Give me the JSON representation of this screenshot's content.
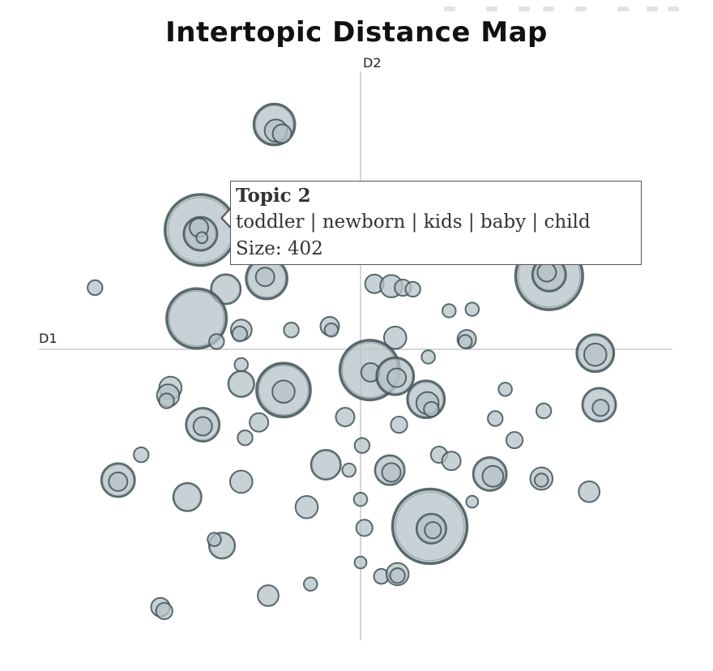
{
  "chart_data": {
    "type": "scatter",
    "title": "Intertopic Distance Map",
    "axes": {
      "x_label": "D1",
      "y_label": "D2"
    },
    "colors": {
      "bubble_fill": "#b5c2c8",
      "bubble_stroke": "#3f5353",
      "axis_line": "#d6d6d6"
    },
    "tooltip": {
      "title": "Topic 2",
      "words": "toddler | newborn | kids | baby | child",
      "size": "Size: 402"
    },
    "points": [
      {
        "x": -1.12,
        "y": 2.92,
        "s": 0.55
      },
      {
        "x": -1.1,
        "y": 2.84,
        "s": 0.3
      },
      {
        "x": -1.02,
        "y": 2.8,
        "s": 0.25
      },
      {
        "x": -2.08,
        "y": 1.55,
        "s": 0.95
      },
      {
        "x": -2.08,
        "y": 1.5,
        "s": 0.45
      },
      {
        "x": -2.1,
        "y": 1.58,
        "s": 0.25
      },
      {
        "x": -2.06,
        "y": 1.45,
        "s": 0.15
      },
      {
        "x": -3.45,
        "y": 0.8,
        "s": 0.2
      },
      {
        "x": -1.75,
        "y": 0.78,
        "s": 0.4
      },
      {
        "x": -1.22,
        "y": 0.92,
        "s": 0.55
      },
      {
        "x": -1.24,
        "y": 0.94,
        "s": 0.25
      },
      {
        "x": -2.13,
        "y": 0.4,
        "s": 0.8
      },
      {
        "x": -1.55,
        "y": 0.25,
        "s": 0.28
      },
      {
        "x": -1.57,
        "y": 0.2,
        "s": 0.2
      },
      {
        "x": -1.87,
        "y": 0.1,
        "s": 0.2
      },
      {
        "x": -0.9,
        "y": 0.25,
        "s": 0.2
      },
      {
        "x": -0.4,
        "y": 0.3,
        "s": 0.25
      },
      {
        "x": -0.38,
        "y": 0.25,
        "s": 0.18
      },
      {
        "x": 0.18,
        "y": 0.85,
        "s": 0.25
      },
      {
        "x": 0.4,
        "y": 0.82,
        "s": 0.3
      },
      {
        "x": 0.55,
        "y": 0.8,
        "s": 0.22
      },
      {
        "x": 0.68,
        "y": 0.78,
        "s": 0.2
      },
      {
        "x": 2.45,
        "y": 0.95,
        "s": 0.9
      },
      {
        "x": 2.45,
        "y": 0.97,
        "s": 0.45
      },
      {
        "x": 2.42,
        "y": 1.0,
        "s": 0.25
      },
      {
        "x": 1.15,
        "y": 0.5,
        "s": 0.18
      },
      {
        "x": 1.45,
        "y": 0.52,
        "s": 0.18
      },
      {
        "x": 0.45,
        "y": 0.15,
        "s": 0.3
      },
      {
        "x": 1.38,
        "y": 0.13,
        "s": 0.25
      },
      {
        "x": 1.36,
        "y": 0.1,
        "s": 0.18
      },
      {
        "x": 0.88,
        "y": -0.1,
        "s": 0.18
      },
      {
        "x": 3.05,
        "y": -0.05,
        "s": 0.5
      },
      {
        "x": 3.05,
        "y": -0.07,
        "s": 0.3
      },
      {
        "x": 0.12,
        "y": -0.27,
        "s": 0.8
      },
      {
        "x": 0.13,
        "y": -0.3,
        "s": 0.25
      },
      {
        "x": 0.45,
        "y": -0.35,
        "s": 0.5
      },
      {
        "x": 0.47,
        "y": -0.37,
        "s": 0.25
      },
      {
        "x": -1.55,
        "y": -0.2,
        "s": 0.18
      },
      {
        "x": -1.55,
        "y": -0.45,
        "s": 0.35
      },
      {
        "x": -2.47,
        "y": -0.5,
        "s": 0.3
      },
      {
        "x": -2.5,
        "y": -0.6,
        "s": 0.3
      },
      {
        "x": -2.52,
        "y": -0.67,
        "s": 0.2
      },
      {
        "x": -1.0,
        "y": -0.53,
        "s": 0.72
      },
      {
        "x": -1.0,
        "y": -0.55,
        "s": 0.3
      },
      {
        "x": 0.85,
        "y": -0.65,
        "s": 0.5
      },
      {
        "x": 0.87,
        "y": -0.7,
        "s": 0.3
      },
      {
        "x": 0.92,
        "y": -0.78,
        "s": 0.2
      },
      {
        "x": 1.88,
        "y": -0.52,
        "s": 0.18
      },
      {
        "x": 3.1,
        "y": -0.72,
        "s": 0.45
      },
      {
        "x": 3.12,
        "y": -0.76,
        "s": 0.22
      },
      {
        "x": -1.32,
        "y": -0.95,
        "s": 0.25
      },
      {
        "x": -1.5,
        "y": -1.15,
        "s": 0.2
      },
      {
        "x": -2.05,
        "y": -0.98,
        "s": 0.45
      },
      {
        "x": -2.05,
        "y": -1.0,
        "s": 0.25
      },
      {
        "x": -0.2,
        "y": -0.88,
        "s": 0.25
      },
      {
        "x": 0.5,
        "y": -0.98,
        "s": 0.22
      },
      {
        "x": 1.75,
        "y": -0.9,
        "s": 0.2
      },
      {
        "x": 2.38,
        "y": -0.8,
        "s": 0.2
      },
      {
        "x": 2.0,
        "y": -1.18,
        "s": 0.22
      },
      {
        "x": -2.85,
        "y": -1.37,
        "s": 0.2
      },
      {
        "x": -3.15,
        "y": -1.7,
        "s": 0.45
      },
      {
        "x": -3.15,
        "y": -1.72,
        "s": 0.25
      },
      {
        "x": -2.25,
        "y": -1.92,
        "s": 0.38
      },
      {
        "x": -1.55,
        "y": -1.72,
        "s": 0.3
      },
      {
        "x": -0.45,
        "y": -1.5,
        "s": 0.4
      },
      {
        "x": 0.02,
        "y": -1.25,
        "s": 0.2
      },
      {
        "x": -0.15,
        "y": -1.57,
        "s": 0.18
      },
      {
        "x": 0.38,
        "y": -1.57,
        "s": 0.4
      },
      {
        "x": 0.4,
        "y": -1.6,
        "s": 0.25
      },
      {
        "x": 1.02,
        "y": -1.37,
        "s": 0.22
      },
      {
        "x": 1.18,
        "y": -1.45,
        "s": 0.25
      },
      {
        "x": 1.68,
        "y": -1.62,
        "s": 0.45
      },
      {
        "x": 1.72,
        "y": -1.65,
        "s": 0.28
      },
      {
        "x": 2.35,
        "y": -1.68,
        "s": 0.3
      },
      {
        "x": 2.35,
        "y": -1.7,
        "s": 0.18
      },
      {
        "x": -0.7,
        "y": -2.05,
        "s": 0.3
      },
      {
        "x": 0.0,
        "y": -1.95,
        "s": 0.18
      },
      {
        "x": 0.9,
        "y": -2.3,
        "s": 1.0
      },
      {
        "x": 0.92,
        "y": -2.33,
        "s": 0.4
      },
      {
        "x": 0.94,
        "y": -2.35,
        "s": 0.22
      },
      {
        "x": 1.45,
        "y": -1.98,
        "s": 0.16
      },
      {
        "x": 2.97,
        "y": -1.85,
        "s": 0.28
      },
      {
        "x": -1.8,
        "y": -2.55,
        "s": 0.35
      },
      {
        "x": -1.9,
        "y": -2.47,
        "s": 0.18
      },
      {
        "x": 0.05,
        "y": -2.32,
        "s": 0.22
      },
      {
        "x": 0.0,
        "y": -2.77,
        "s": 0.16
      },
      {
        "x": -0.65,
        "y": -3.05,
        "s": 0.18
      },
      {
        "x": 0.27,
        "y": -2.95,
        "s": 0.2
      },
      {
        "x": 0.48,
        "y": -2.92,
        "s": 0.3
      },
      {
        "x": 0.48,
        "y": -2.94,
        "s": 0.2
      },
      {
        "x": -1.2,
        "y": -3.2,
        "s": 0.28
      },
      {
        "x": -2.6,
        "y": -3.35,
        "s": 0.25
      },
      {
        "x": -2.55,
        "y": -3.4,
        "s": 0.22
      }
    ]
  }
}
